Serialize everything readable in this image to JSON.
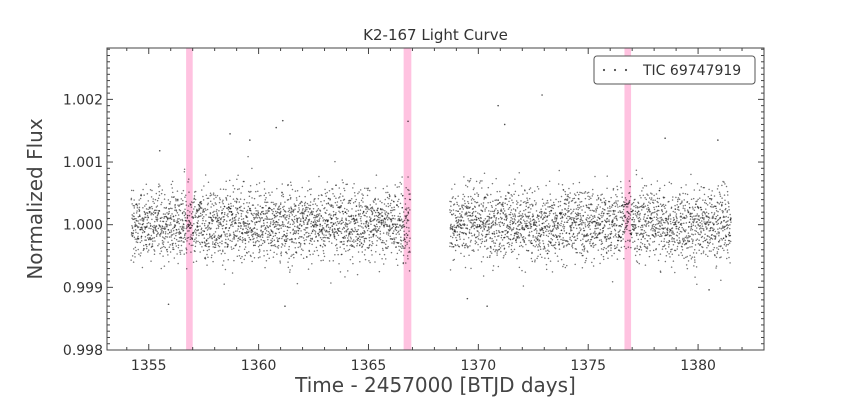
{
  "chart_data": {
    "type": "scatter",
    "title": "K2-167 Light Curve",
    "xlabel": "Time - 2457000 [BTJD days]",
    "ylabel": "Normalized Flux",
    "xlim": [
      1353.1,
      1383.0
    ],
    "ylim": [
      0.998,
      1.00282
    ],
    "xticks": [
      1355,
      1360,
      1365,
      1370,
      1375,
      1380
    ],
    "yticks": [
      0.998,
      0.999,
      1.0,
      1.001,
      1.002
    ],
    "xtick_labels": [
      "1355",
      "1360",
      "1365",
      "1370",
      "1375",
      "1380"
    ],
    "ytick_labels": [
      "0.998",
      "0.999",
      "1.000",
      "1.001",
      "1.002"
    ],
    "grid": false,
    "legend": {
      "position": "top-right",
      "entries": [
        "TIC 69747919"
      ]
    },
    "series": [
      {
        "name": "TIC 69747919",
        "marker_color": "#000000",
        "segments": [
          {
            "x_start": 1354.2,
            "x_end": 1366.9,
            "center": 1.0,
            "std": 0.00029
          },
          {
            "x_start": 1368.7,
            "x_end": 1381.5,
            "center": 1.0,
            "std": 0.00029
          }
        ],
        "outliers": [
          {
            "x": 1355.5,
            "y": 1.00118
          },
          {
            "x": 1358.7,
            "y": 1.00145
          },
          {
            "x": 1359.6,
            "y": 1.00135
          },
          {
            "x": 1361.1,
            "y": 1.00166
          },
          {
            "x": 1360.8,
            "y": 1.00155
          },
          {
            "x": 1355.9,
            "y": 0.99873
          },
          {
            "x": 1361.2,
            "y": 0.9987
          },
          {
            "x": 1366.8,
            "y": 1.00165
          },
          {
            "x": 1369.5,
            "y": 0.99882
          },
          {
            "x": 1370.9,
            "y": 1.0019
          },
          {
            "x": 1371.2,
            "y": 1.0016
          },
          {
            "x": 1372.9,
            "y": 1.00207
          },
          {
            "x": 1370.4,
            "y": 0.9987
          },
          {
            "x": 1378.5,
            "y": 1.00138
          },
          {
            "x": 1380.9,
            "y": 1.00135
          },
          {
            "x": 1380.5,
            "y": 0.99896
          }
        ]
      }
    ],
    "highlight_bands": [
      {
        "x_start": 1356.7,
        "x_end": 1357.0,
        "color": "#ff99cc"
      },
      {
        "x_start": 1366.6,
        "x_end": 1366.95,
        "color": "#ff99cc"
      },
      {
        "x_start": 1376.65,
        "x_end": 1376.95,
        "color": "#ff99cc"
      }
    ]
  }
}
